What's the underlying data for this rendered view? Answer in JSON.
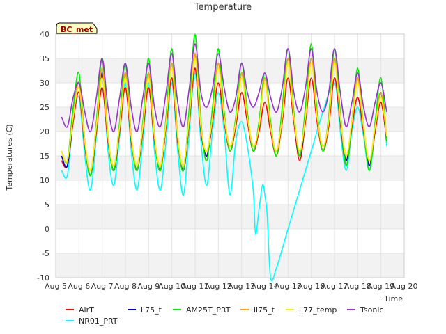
{
  "chart_data": {
    "type": "line",
    "title": "Temperature",
    "xlabel": "Time",
    "ylabel": "Temperatures (C)",
    "badge": "BC_met",
    "xlim": [
      5,
      20
    ],
    "ylim": [
      -10,
      40
    ],
    "x_ticks": [
      {
        "v": 5,
        "label": "Aug 5"
      },
      {
        "v": 6,
        "label": "Aug 6"
      },
      {
        "v": 7,
        "label": "Aug 7"
      },
      {
        "v": 8,
        "label": "Aug 8"
      },
      {
        "v": 9,
        "label": "Aug 9"
      },
      {
        "v": 10,
        "label": "Aug 10"
      },
      {
        "v": 11,
        "label": "Aug 11"
      },
      {
        "v": 12,
        "label": "Aug 12"
      },
      {
        "v": 13,
        "label": "Aug 13"
      },
      {
        "v": 14,
        "label": "Aug 14"
      },
      {
        "v": 15,
        "label": "Aug 15"
      },
      {
        "v": 16,
        "label": "Aug 16"
      },
      {
        "v": 17,
        "label": "Aug 17"
      },
      {
        "v": 18,
        "label": "Aug 18"
      },
      {
        "v": 19,
        "label": "Aug 19"
      },
      {
        "v": 20,
        "label": "Aug 20"
      }
    ],
    "y_ticks": [
      -10,
      -5,
      0,
      5,
      10,
      15,
      20,
      25,
      30,
      35,
      40
    ],
    "grid": true,
    "background_bands": true,
    "legend_position": "bottom",
    "series": [
      {
        "name": "AirT",
        "color": "#ff0000",
        "x": [
          5.25,
          5.5,
          5.75,
          6.0,
          6.25,
          6.5,
          6.75,
          7.0,
          7.25,
          7.5,
          7.75,
          8.0,
          8.25,
          8.5,
          8.75,
          9.0,
          9.25,
          9.5,
          9.75,
          10.0,
          10.25,
          10.5,
          10.75,
          11.0,
          11.25,
          11.5,
          11.75,
          12.0,
          12.25,
          12.5,
          12.75,
          13.0,
          13.25,
          13.5,
          13.75,
          14.0,
          14.25,
          14.5,
          14.75,
          15.0,
          15.25,
          15.5,
          15.75,
          16.0,
          16.25,
          16.5,
          16.75,
          17.0,
          17.25,
          17.5,
          17.75,
          18.0,
          18.25,
          18.5,
          18.75,
          19.0,
          19.25
        ],
        "y": [
          14,
          13,
          22,
          28,
          17,
          11,
          20,
          29,
          18,
          12,
          20,
          29,
          18,
          12,
          20,
          29,
          18,
          12,
          21,
          31,
          18,
          12,
          22,
          33,
          20,
          15,
          22,
          30,
          22,
          16,
          21,
          28,
          22,
          16,
          20,
          26,
          20,
          15,
          22,
          31,
          22,
          14,
          22,
          31,
          22,
          16,
          21,
          31,
          22,
          13,
          21,
          27,
          20,
          13,
          20,
          26,
          18
        ]
      },
      {
        "name": "li75_t",
        "color": "#0000cc",
        "x": [
          5.25,
          5.5,
          5.75,
          6.0,
          6.25,
          6.5,
          6.75,
          7.0,
          7.25,
          7.5,
          7.75,
          8.0,
          8.25,
          8.5,
          8.75,
          9.0,
          9.25,
          9.5,
          9.75,
          10.0,
          10.25,
          10.5,
          10.75,
          11.0,
          11.25,
          11.5,
          11.75,
          12.0,
          12.25,
          12.5,
          12.75,
          13.0,
          13.25,
          13.5,
          13.75,
          14.0,
          14.25,
          14.5,
          14.75,
          15.0,
          15.25,
          15.5,
          15.75,
          16.0,
          16.25,
          16.5,
          16.75,
          17.0,
          17.25,
          17.5,
          17.75,
          18.0,
          18.25,
          18.5,
          18.75,
          19.0,
          19.25
        ],
        "y": [
          15,
          13,
          23,
          30,
          18,
          11,
          21,
          32,
          19,
          12,
          21,
          32,
          19,
          12,
          21,
          32,
          19,
          12,
          22,
          34,
          19,
          12,
          23,
          36,
          21,
          15,
          23,
          34,
          23,
          17,
          22,
          32,
          23,
          17,
          21,
          31,
          21,
          16,
          23,
          35,
          23,
          15,
          23,
          35,
          23,
          17,
          22,
          35,
          23,
          14,
          22,
          31,
          21,
          13,
          21,
          28,
          18
        ]
      },
      {
        "name": "AM25T_PRT",
        "color": "#00ee00",
        "x": [
          5.25,
          5.5,
          5.75,
          6.0,
          6.25,
          6.5,
          6.75,
          7.0,
          7.25,
          7.5,
          7.75,
          8.0,
          8.25,
          8.5,
          8.75,
          9.0,
          9.25,
          9.5,
          9.75,
          10.0,
          10.25,
          10.5,
          10.75,
          11.0,
          11.25,
          11.5,
          11.75,
          12.0,
          12.25,
          12.5,
          12.75,
          13.0,
          13.25,
          13.5,
          13.75,
          14.0,
          14.25,
          14.5,
          14.75,
          15.0,
          15.25,
          15.5,
          15.75,
          16.0,
          16.25,
          16.5,
          16.75,
          17.0,
          17.25,
          17.5,
          17.75,
          18.0,
          18.25,
          18.5,
          18.75,
          19.0,
          19.25
        ],
        "y": [
          16,
          14,
          25,
          32,
          18,
          11,
          22,
          35,
          19,
          12,
          22,
          34,
          19,
          12,
          22,
          35,
          19,
          12,
          23,
          37,
          19,
          12,
          25,
          40,
          22,
          14,
          25,
          37,
          24,
          16,
          23,
          34,
          24,
          16,
          22,
          32,
          22,
          15,
          25,
          37,
          24,
          15,
          25,
          38,
          24,
          16,
          23,
          37,
          24,
          13,
          22,
          33,
          21,
          12,
          22,
          31,
          18
        ]
      },
      {
        "name": "li75_t",
        "color": "#ffa500",
        "x": [
          5.25,
          5.5,
          5.75,
          6.0,
          6.25,
          6.5,
          6.75,
          7.0,
          7.25,
          7.5,
          7.75,
          8.0,
          8.25,
          8.5,
          8.75,
          9.0,
          9.25,
          9.5,
          9.75,
          10.0,
          10.25,
          10.5,
          10.75,
          11.0,
          11.25,
          11.5,
          11.75,
          12.0,
          12.25,
          12.5,
          12.75,
          13.0,
          13.25,
          13.5,
          13.75,
          14.0,
          14.25,
          14.5,
          14.75,
          15.0,
          15.25,
          15.5,
          15.75,
          16.0,
          16.25,
          16.5,
          16.75,
          17.0,
          17.25,
          17.5,
          17.75,
          18.0,
          18.25,
          18.5,
          18.75,
          19.0,
          19.25
        ],
        "y": [
          16,
          14,
          23,
          30,
          18,
          12,
          21,
          33,
          19,
          13,
          21,
          32,
          19,
          13,
          21,
          32,
          19,
          13,
          22,
          34,
          19,
          13,
          23,
          36,
          21,
          16,
          23,
          34,
          23,
          17,
          22,
          32,
          23,
          17,
          21,
          31,
          21,
          16,
          23,
          35,
          23,
          16,
          23,
          35,
          23,
          17,
          22,
          35,
          23,
          15,
          22,
          31,
          21,
          14,
          21,
          28,
          19
        ]
      },
      {
        "name": "li77_temp",
        "color": "#ffee00",
        "x": [
          5.25,
          5.5,
          5.75,
          6.0,
          6.25,
          6.5,
          6.75,
          7.0,
          7.25,
          7.5,
          7.75,
          8.0,
          8.25,
          8.5,
          8.75,
          9.0,
          9.25,
          9.5,
          9.75,
          10.0,
          10.25,
          10.5,
          10.75,
          11.0,
          11.25,
          11.5,
          11.75,
          12.0,
          12.25,
          12.5,
          12.75,
          13.0,
          13.25,
          13.5,
          13.75,
          14.0,
          14.25,
          14.5,
          14.75,
          15.0,
          15.25,
          15.5,
          15.75,
          16.0,
          16.25,
          16.5,
          16.75,
          17.0,
          17.25,
          17.5,
          17.75,
          18.0,
          18.25,
          18.5,
          18.75,
          19.0,
          19.25
        ],
        "y": [
          16,
          14,
          23,
          29,
          18,
          12,
          21,
          31,
          19,
          13,
          21,
          31,
          19,
          13,
          21,
          31,
          19,
          13,
          22,
          33,
          19,
          13,
          23,
          35,
          21,
          16,
          23,
          33,
          23,
          17,
          22,
          31,
          23,
          17,
          21,
          30,
          21,
          16,
          23,
          34,
          23,
          16,
          23,
          34,
          23,
          17,
          22,
          34,
          23,
          15,
          22,
          30,
          21,
          14,
          21,
          27,
          19
        ]
      },
      {
        "name": "Tsonic",
        "color": "#9933cc",
        "x": [
          5.25,
          5.5,
          5.75,
          6.0,
          6.25,
          6.5,
          6.75,
          7.0,
          7.25,
          7.5,
          7.75,
          8.0,
          8.25,
          8.5,
          8.75,
          9.0,
          9.25,
          9.5,
          9.75,
          10.0,
          10.25,
          10.5,
          10.75,
          11.0,
          11.25,
          11.5,
          11.75,
          12.0,
          12.25,
          12.5,
          12.75,
          13.0,
          13.25,
          13.5,
          13.75,
          14.0,
          14.25,
          14.5,
          14.75,
          15.0,
          15.25,
          15.5,
          15.75,
          16.0,
          16.25,
          16.5,
          16.75,
          17.0,
          17.25,
          17.5,
          17.75,
          18.0,
          18.25,
          18.5,
          18.75,
          19.0,
          19.25
        ],
        "y": [
          23,
          21,
          27,
          30,
          24,
          20,
          27,
          35,
          25,
          20,
          27,
          34,
          25,
          20,
          27,
          34,
          25,
          21,
          28,
          36,
          26,
          21,
          29,
          38,
          28,
          25,
          29,
          36,
          29,
          24,
          27,
          34,
          28,
          25,
          28,
          32,
          27,
          24,
          29,
          37,
          28,
          24,
          29,
          37,
          28,
          24,
          28,
          37,
          28,
          21,
          26,
          32,
          25,
          21,
          26,
          30,
          24
        ]
      },
      {
        "name": "NR01_PRT",
        "color": "#00ffff",
        "x": [
          5.25,
          5.5,
          5.75,
          6.0,
          6.25,
          6.5,
          6.75,
          7.0,
          7.25,
          7.5,
          7.75,
          8.0,
          8.25,
          8.5,
          8.75,
          9.0,
          9.25,
          9.5,
          9.75,
          10.0,
          10.25,
          10.5,
          10.75,
          11.0,
          11.25,
          11.5,
          11.75,
          12.0,
          12.25,
          12.5,
          12.75,
          13.0,
          13.25,
          13.5,
          13.6,
          13.75,
          13.9,
          14.0,
          14.1,
          14.25,
          14.5,
          15.0,
          15.5,
          16.0,
          16.5,
          17.0,
          17.25,
          17.5,
          17.75,
          18.0,
          18.25,
          18.5,
          18.75,
          19.0,
          19.25
        ],
        "y": [
          12,
          11,
          22,
          27,
          15,
          8,
          19,
          31,
          16,
          9,
          19,
          30,
          16,
          8,
          18,
          30,
          16,
          8,
          18,
          30,
          16,
          7,
          20,
          32,
          18,
          9,
          20,
          28,
          20,
          7,
          18,
          22,
          17,
          8,
          -1,
          4,
          9,
          7,
          3,
          -10,
          -8,
          0,
          8,
          16,
          24,
          30,
          20,
          12,
          20,
          25,
          19,
          12,
          20,
          28,
          17
        ]
      }
    ]
  }
}
